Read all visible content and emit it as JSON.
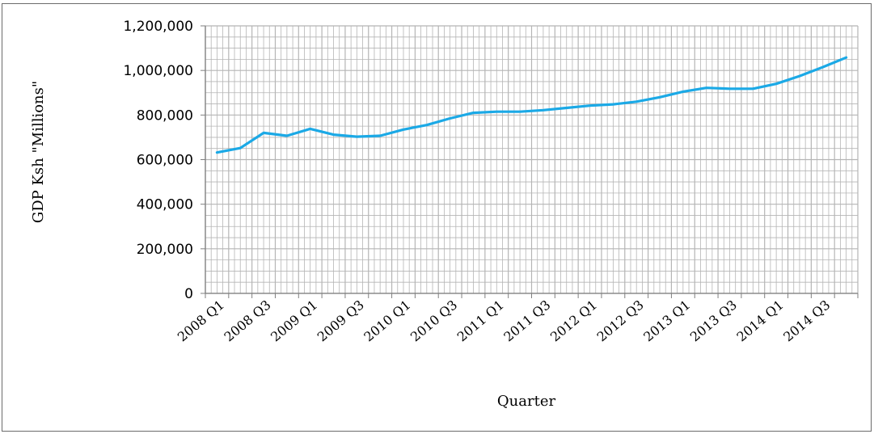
{
  "chart_data": {
    "type": "line",
    "title": "",
    "xlabel": "Quarter",
    "ylabel": "GDP Ksh \"Millions\"",
    "ylim": [
      0,
      1200000
    ],
    "yticks": [
      0,
      200000,
      400000,
      600000,
      800000,
      1000000,
      1200000
    ],
    "ytick_labels": [
      "0",
      "200,000",
      "400,000",
      "600,000",
      "800,000",
      "1,000,000",
      "1,200,000"
    ],
    "xtick_labels": [
      "2008 Q1",
      "2008 Q3",
      "2009 Q1",
      "2009 Q3",
      "2010 Q1",
      "2010 Q3",
      "2011 Q1",
      "2011 Q3",
      "2012 Q1",
      "2012 Q3",
      "2013 Q1",
      "2013 Q3",
      "2014 Q1",
      "2014 Q3"
    ],
    "categories": [
      "2008 Q1",
      "2008 Q2",
      "2008 Q3",
      "2008 Q4",
      "2009 Q1",
      "2009 Q2",
      "2009 Q3",
      "2009 Q4",
      "2010 Q1",
      "2010 Q2",
      "2010 Q3",
      "2010 Q4",
      "2011 Q1",
      "2011 Q2",
      "2011 Q3",
      "2011 Q4",
      "2012 Q1",
      "2012 Q2",
      "2012 Q3",
      "2012 Q4",
      "2013 Q1",
      "2013 Q2",
      "2013 Q3",
      "2013 Q4",
      "2014 Q1",
      "2014 Q2",
      "2014 Q3",
      "2014 Q4"
    ],
    "series": [
      {
        "values": [
          632000,
          652000,
          720000,
          707000,
          738000,
          712000,
          703000,
          707000,
          735000,
          755000,
          785000,
          810000,
          815000,
          815000,
          822000,
          832000,
          842000,
          848000,
          860000,
          880000,
          905000,
          922000,
          918000,
          918000,
          940000,
          975000,
          1015000,
          1058000
        ]
      }
    ],
    "line_color": "#1ba9e6",
    "grid": true
  }
}
